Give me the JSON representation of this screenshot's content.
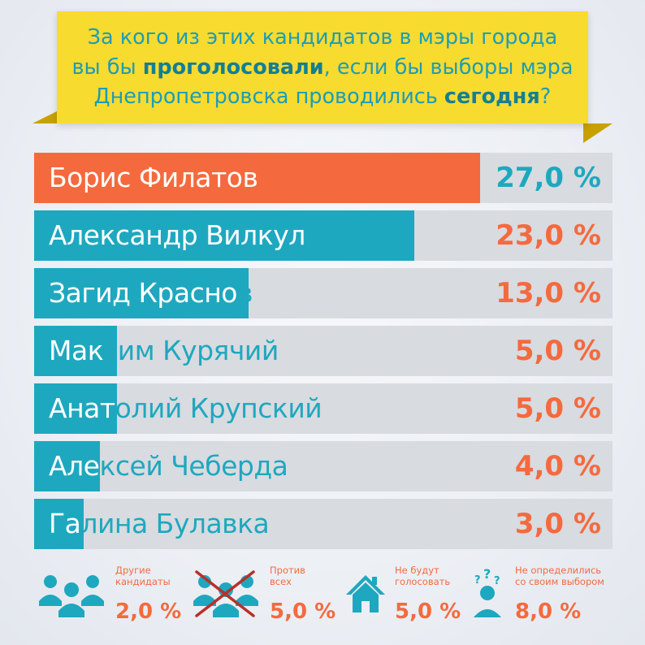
{
  "header": {
    "line1": "За кого из этих кандидатов в мэры города",
    "line2_pre": "вы бы ",
    "line2_bold": "проголосовали",
    "line2_post": ", если бы выборы мэра",
    "line3_pre": "Днепропетровска проводились ",
    "line3_bold": "сегодня",
    "line3_post": "?"
  },
  "colors": {
    "accent_teal": "#1ea8bf",
    "accent_orange": "#f46a3e",
    "banner_yellow": "#f8db2f",
    "track_gray": "#d8dbe0"
  },
  "chart_data": {
    "type": "bar",
    "orientation": "horizontal",
    "categories": [
      "Борис Филатов",
      "Александр Вилкул",
      "Загид Краснов",
      "Максим Курячий",
      "Анатолий Крупский",
      "Алексей Чеберда",
      "Галина Булавка"
    ],
    "values": [
      27.0,
      23.0,
      13.0,
      5.0,
      5.0,
      4.0,
      3.0
    ],
    "labels": [
      "27,0 %",
      "23,0 %",
      "13,0 %",
      "5,0 %",
      "5,0 %",
      "4,0 %",
      "3,0 %"
    ],
    "xlim": [
      0,
      35
    ]
  },
  "stats": [
    {
      "icon": "group-icon",
      "label_line1": "Другие",
      "label_line2": "кандидаты",
      "value": "2,0 %"
    },
    {
      "icon": "crossed-group-icon",
      "label_line1": "Против",
      "label_line2": "всех",
      "value": "5,0 %"
    },
    {
      "icon": "house-icon",
      "label_line1": "Не будут",
      "label_line2": "голосовать",
      "value": "5,0 %"
    },
    {
      "icon": "confused-person-icon",
      "label_line1": "Не определились",
      "label_line2": "со своим выбором",
      "value": "8,0 %"
    }
  ]
}
